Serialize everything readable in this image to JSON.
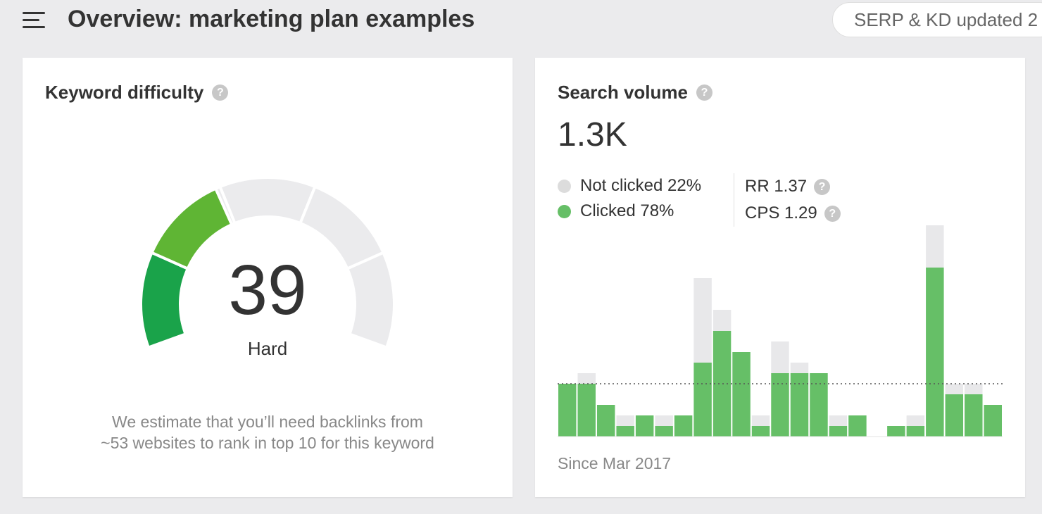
{
  "header": {
    "title": "Overview: marketing plan examples",
    "serp_status": "SERP & KD updated 2"
  },
  "keyword_difficulty": {
    "title": "Keyword difficulty",
    "help": "?",
    "score": "39",
    "score_value": 39,
    "label": "Hard",
    "description_line1": "We estimate that you’ll need backlinks from",
    "description_line2": "~53 websites to rank in top 10 for this keyword",
    "colors": {
      "empty": "#ebebed",
      "low": "#1aa34a",
      "mid": "#5fb534",
      "high": "#aec41c"
    }
  },
  "search_volume": {
    "title": "Search volume",
    "help": "?",
    "value": "1.3K",
    "not_clicked": "Not clicked 22%",
    "clicked": "Clicked 78%",
    "rr": "RR 1.37",
    "cps": "CPS 1.29",
    "since": "Since Mar 2017",
    "colors": {
      "clicked": "#66bf67",
      "not_clicked": "#e8e8ea"
    }
  },
  "chart_data": {
    "type": "bar",
    "stacked": true,
    "series": [
      {
        "values": [
          50,
          50,
          30,
          10,
          20,
          10,
          20,
          70,
          100,
          80,
          10,
          60,
          60,
          60,
          10,
          20,
          0,
          10,
          10,
          160,
          40,
          40,
          30
        ]
      },
      {
        "values": [
          0,
          10,
          0,
          10,
          0,
          10,
          0,
          80,
          20,
          0,
          10,
          30,
          10,
          0,
          10,
          0,
          0,
          0,
          10,
          40,
          10,
          10,
          0
        ]
      }
    ],
    "reference_line": 50,
    "ymax": 200
  }
}
